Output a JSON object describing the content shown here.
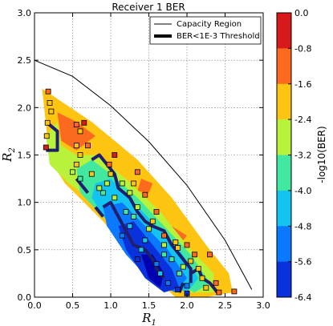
{
  "chart_data": {
    "type": "contour",
    "title": "Receiver 1 BER",
    "xlabel_base": "R",
    "xlabel_sub": "1",
    "ylabel_base": "R",
    "ylabel_sub": "2",
    "xlim": [
      0.0,
      3.0
    ],
    "ylim": [
      0.0,
      3.0
    ],
    "x_ticks": [
      "0.0",
      "0.5",
      "1.0",
      "1.5",
      "2.0",
      "2.5",
      "3.0"
    ],
    "y_ticks": [
      "0.0",
      "0.5",
      "1.0",
      "1.5",
      "2.0",
      "2.5",
      "3.0"
    ],
    "x_tick_values": [
      0.0,
      0.5,
      1.0,
      1.5,
      2.0,
      2.5,
      3.0
    ],
    "y_tick_values": [
      0.0,
      0.5,
      1.0,
      1.5,
      2.0,
      2.5,
      3.0
    ],
    "grid": true,
    "legend_position": "top-right",
    "legend": [
      {
        "label": "Capacity Region",
        "style": "thin-line"
      },
      {
        "label": "BER<1E-3 Threshold",
        "style": "thick-line"
      }
    ],
    "colorbar": {
      "label": "-log10(BER)",
      "min": -6.4,
      "max": 0.0,
      "tick_labels": [
        "0.0",
        "-0.8",
        "-1.6",
        "-2.4",
        "-3.2",
        "-4.0",
        "-4.8",
        "-5.6",
        "-6.4"
      ],
      "tick_values": [
        0.0,
        -0.8,
        -1.6,
        -2.4,
        -3.2,
        -4.0,
        -4.8,
        -5.6,
        -6.4
      ],
      "band_colors": [
        "#d7191c",
        "#fb6a1e",
        "#fdc412",
        "#b8f23a",
        "#43e8a0",
        "#14c4f0",
        "#0a78ff",
        "#0a32dc"
      ]
    },
    "capacity_region": [
      [
        0.0,
        2.5
      ],
      [
        0.5,
        2.33
      ],
      [
        1.0,
        2.02
      ],
      [
        1.5,
        1.64
      ],
      [
        2.0,
        1.18
      ],
      [
        2.5,
        0.6
      ],
      [
        2.85,
        0.08
      ]
    ],
    "contour_bands": [
      {
        "level": -0.8,
        "color": "#fdc412",
        "polygon": [
          [
            0.1,
            2.2
          ],
          [
            0.75,
            1.85
          ],
          [
            1.35,
            1.45
          ],
          [
            1.8,
            1.05
          ],
          [
            2.25,
            0.55
          ],
          [
            2.55,
            0.25
          ],
          [
            2.6,
            0.05
          ],
          [
            2.25,
            0.0
          ],
          [
            1.85,
            0.0
          ],
          [
            1.3,
            0.4
          ],
          [
            0.9,
            0.8
          ],
          [
            0.4,
            1.2
          ],
          [
            0.2,
            1.45
          ]
        ]
      },
      {
        "level": -1.6,
        "color": "#fb6a1e",
        "polygon": [
          [
            0.3,
            1.95
          ],
          [
            0.55,
            1.85
          ],
          [
            0.8,
            1.7
          ],
          [
            0.55,
            1.55
          ],
          [
            0.35,
            1.65
          ]
        ]
      },
      {
        "level": -1.6,
        "color": "#fb6a1e",
        "polygon": [
          [
            1.4,
            1.25
          ],
          [
            1.55,
            1.2
          ],
          [
            1.5,
            1.1
          ],
          [
            1.35,
            1.12
          ]
        ]
      },
      {
        "level": -1.6,
        "color": "#fb6a1e",
        "polygon": [
          [
            1.8,
            0.75
          ],
          [
            2.0,
            0.65
          ],
          [
            1.9,
            0.55
          ],
          [
            1.75,
            0.6
          ]
        ]
      },
      {
        "level": -2.4,
        "color": "#b8f23a",
        "polygon": [
          [
            0.15,
            1.7
          ],
          [
            0.3,
            1.85
          ],
          [
            0.35,
            1.6
          ],
          [
            0.55,
            1.5
          ],
          [
            0.8,
            1.5
          ],
          [
            1.2,
            1.25
          ],
          [
            1.65,
            0.9
          ],
          [
            2.0,
            0.55
          ],
          [
            2.35,
            0.25
          ],
          [
            2.35,
            0.05
          ],
          [
            2.05,
            0.05
          ],
          [
            1.7,
            0.3
          ],
          [
            1.2,
            0.7
          ],
          [
            0.8,
            1.0
          ],
          [
            0.45,
            1.2
          ],
          [
            0.2,
            1.4
          ]
        ]
      },
      {
        "level": -3.2,
        "color": "#43e8a0",
        "polygon": [
          [
            0.55,
            1.35
          ],
          [
            0.75,
            1.45
          ],
          [
            1.0,
            1.3
          ],
          [
            1.35,
            1.05
          ],
          [
            1.7,
            0.75
          ],
          [
            2.05,
            0.45
          ],
          [
            2.3,
            0.15
          ],
          [
            2.1,
            0.05
          ],
          [
            1.75,
            0.2
          ],
          [
            1.3,
            0.55
          ],
          [
            0.9,
            0.85
          ],
          [
            0.6,
            1.1
          ]
        ]
      },
      {
        "level": -4.0,
        "color": "#14c4f0",
        "polygon": [
          [
            0.8,
            1.2
          ],
          [
            1.0,
            1.25
          ],
          [
            1.3,
            1.0
          ],
          [
            1.6,
            0.75
          ],
          [
            1.9,
            0.5
          ],
          [
            2.15,
            0.2
          ],
          [
            2.0,
            0.05
          ],
          [
            1.7,
            0.15
          ],
          [
            1.3,
            0.45
          ],
          [
            0.95,
            0.8
          ],
          [
            0.75,
            1.05
          ]
        ]
      },
      {
        "level": -4.8,
        "color": "#0a78ff",
        "polygon": [
          [
            0.9,
            0.95
          ],
          [
            1.15,
            1.0
          ],
          [
            1.45,
            0.75
          ],
          [
            1.75,
            0.5
          ],
          [
            2.0,
            0.2
          ],
          [
            1.85,
            0.05
          ],
          [
            1.55,
            0.15
          ],
          [
            1.2,
            0.45
          ],
          [
            0.95,
            0.75
          ]
        ]
      },
      {
        "level": -5.6,
        "color": "#0a32dc",
        "polygon": [
          [
            1.1,
            0.75
          ],
          [
            1.3,
            0.8
          ],
          [
            1.55,
            0.55
          ],
          [
            1.8,
            0.3
          ],
          [
            1.9,
            0.1
          ],
          [
            1.7,
            0.05
          ],
          [
            1.45,
            0.2
          ],
          [
            1.2,
            0.5
          ]
        ]
      },
      {
        "level": -6.4,
        "color": "#0000b0",
        "polygon": [
          [
            1.4,
            0.45
          ],
          [
            1.55,
            0.45
          ],
          [
            1.7,
            0.25
          ],
          [
            1.65,
            0.1
          ],
          [
            1.5,
            0.2
          ]
        ]
      }
    ],
    "threshold_segments": [
      [
        [
          0.15,
          1.85
        ],
        [
          0.3,
          1.75
        ],
        [
          0.3,
          1.55
        ],
        [
          0.15,
          1.55
        ]
      ],
      [
        [
          0.55,
          1.25
        ],
        [
          0.7,
          1.1
        ]
      ],
      [
        [
          0.75,
          1.45
        ],
        [
          0.85,
          1.5
        ],
        [
          0.95,
          1.4
        ],
        [
          1.05,
          1.3
        ],
        [
          1.1,
          1.15
        ],
        [
          1.25,
          1.05
        ],
        [
          1.35,
          0.9
        ],
        [
          1.45,
          0.8
        ],
        [
          1.55,
          0.75
        ],
        [
          1.7,
          0.7
        ],
        [
          1.8,
          0.55
        ],
        [
          1.85,
          0.5
        ],
        [
          1.95,
          0.4
        ],
        [
          2.05,
          0.3
        ],
        [
          2.05,
          0.15
        ]
      ],
      [
        [
          0.9,
          0.95
        ],
        [
          1.0,
          1.0
        ],
        [
          1.1,
          0.85
        ],
        [
          1.2,
          0.7
        ],
        [
          1.3,
          0.55
        ],
        [
          1.45,
          0.5
        ],
        [
          1.55,
          0.4
        ],
        [
          1.6,
          0.3
        ],
        [
          1.7,
          0.2
        ]
      ],
      [
        [
          0.8,
          0.95
        ],
        [
          0.9,
          0.85
        ]
      ],
      [
        [
          2.05,
          0.25
        ],
        [
          2.15,
          0.3
        ],
        [
          2.2,
          0.2
        ],
        [
          2.3,
          0.15
        ],
        [
          2.35,
          0.1
        ],
        [
          2.4,
          0.05
        ]
      ],
      [
        [
          1.9,
          0.05
        ],
        [
          1.95,
          0.15
        ]
      ]
    ],
    "sample_points": [
      {
        "x": 0.18,
        "y": 2.17,
        "v": -1.3
      },
      {
        "x": 0.2,
        "y": 2.05,
        "v": -1.7
      },
      {
        "x": 0.22,
        "y": 1.96,
        "v": -1.8
      },
      {
        "x": 0.17,
        "y": 1.84,
        "v": -2.1
      },
      {
        "x": 0.16,
        "y": 1.7,
        "v": -2.4
      },
      {
        "x": 0.15,
        "y": 1.58,
        "v": -0.7
      },
      {
        "x": 0.55,
        "y": 1.82,
        "v": -1.2
      },
      {
        "x": 0.6,
        "y": 1.75,
        "v": -1.6
      },
      {
        "x": 0.65,
        "y": 1.84,
        "v": -0.6
      },
      {
        "x": 0.7,
        "y": 1.6,
        "v": -1.4
      },
      {
        "x": 0.55,
        "y": 1.6,
        "v": -1.8
      },
      {
        "x": 0.6,
        "y": 1.5,
        "v": -2.0
      },
      {
        "x": 0.55,
        "y": 1.4,
        "v": -2.2
      },
      {
        "x": 0.5,
        "y": 1.32,
        "v": -2.5
      },
      {
        "x": 0.6,
        "y": 1.25,
        "v": -3.3
      },
      {
        "x": 1.05,
        "y": 1.5,
        "v": -0.5
      },
      {
        "x": 0.98,
        "y": 1.4,
        "v": -1.3
      },
      {
        "x": 1.0,
        "y": 1.3,
        "v": -1.8
      },
      {
        "x": 0.95,
        "y": 1.2,
        "v": -2.7
      },
      {
        "x": 0.9,
        "y": 1.1,
        "v": -3.5
      },
      {
        "x": 1.15,
        "y": 1.2,
        "v": -2.9
      },
      {
        "x": 1.25,
        "y": 1.1,
        "v": -3.1
      },
      {
        "x": 1.3,
        "y": 1.2,
        "v": -2.0
      },
      {
        "x": 1.35,
        "y": 1.32,
        "v": -1.0
      },
      {
        "x": 1.45,
        "y": 1.08,
        "v": -1.5
      },
      {
        "x": 1.6,
        "y": 0.9,
        "v": -1.2
      },
      {
        "x": 1.55,
        "y": 0.8,
        "v": -2.1
      },
      {
        "x": 1.5,
        "y": 0.72,
        "v": -2.8
      },
      {
        "x": 1.45,
        "y": 0.6,
        "v": -4.2
      },
      {
        "x": 1.4,
        "y": 0.5,
        "v": -4.7
      },
      {
        "x": 1.3,
        "y": 0.85,
        "v": -3.3
      },
      {
        "x": 1.35,
        "y": 0.95,
        "v": -2.6
      },
      {
        "x": 1.2,
        "y": 0.9,
        "v": -3.9
      },
      {
        "x": 1.25,
        "y": 0.75,
        "v": -4.5
      },
      {
        "x": 1.15,
        "y": 0.65,
        "v": -5.2
      },
      {
        "x": 1.35,
        "y": 0.4,
        "v": -5.8
      },
      {
        "x": 1.7,
        "y": 0.65,
        "v": -1.4
      },
      {
        "x": 1.7,
        "y": 0.55,
        "v": -2.6
      },
      {
        "x": 1.85,
        "y": 0.58,
        "v": -1.7
      },
      {
        "x": 1.88,
        "y": 0.52,
        "v": -2.2
      },
      {
        "x": 2.0,
        "y": 0.55,
        "v": -1.5
      },
      {
        "x": 2.1,
        "y": 0.45,
        "v": -1.3
      },
      {
        "x": 2.05,
        "y": 0.38,
        "v": -2.3
      },
      {
        "x": 1.95,
        "y": 0.32,
        "v": -3.0
      },
      {
        "x": 1.9,
        "y": 0.25,
        "v": -3.6
      },
      {
        "x": 2.15,
        "y": 0.3,
        "v": -1.9
      },
      {
        "x": 2.3,
        "y": 0.45,
        "v": -1.0
      },
      {
        "x": 2.2,
        "y": 0.2,
        "v": -2.1
      },
      {
        "x": 2.25,
        "y": 0.1,
        "v": -1.6
      },
      {
        "x": 2.38,
        "y": 0.15,
        "v": -0.9
      },
      {
        "x": 2.42,
        "y": 0.05,
        "v": -1.2
      },
      {
        "x": 2.62,
        "y": 0.06,
        "v": -1.4
      },
      {
        "x": 1.88,
        "y": 0.08,
        "v": -5.9
      },
      {
        "x": 2.0,
        "y": 0.12,
        "v": -5.4
      },
      {
        "x": 2.0,
        "y": 0.04,
        "v": -6.1
      },
      {
        "x": 1.75,
        "y": 0.15,
        "v": -5.0
      },
      {
        "x": 1.65,
        "y": 0.25,
        "v": -4.4
      },
      {
        "x": 1.6,
        "y": 0.35,
        "v": -4.9
      },
      {
        "x": 1.8,
        "y": 0.4,
        "v": -3.4
      },
      {
        "x": 1.7,
        "y": 0.45,
        "v": -3.9
      },
      {
        "x": 1.05,
        "y": 1.05,
        "v": -3.0
      },
      {
        "x": 0.85,
        "y": 1.15,
        "v": -2.9
      },
      {
        "x": 0.75,
        "y": 1.3,
        "v": -2.4
      }
    ]
  }
}
